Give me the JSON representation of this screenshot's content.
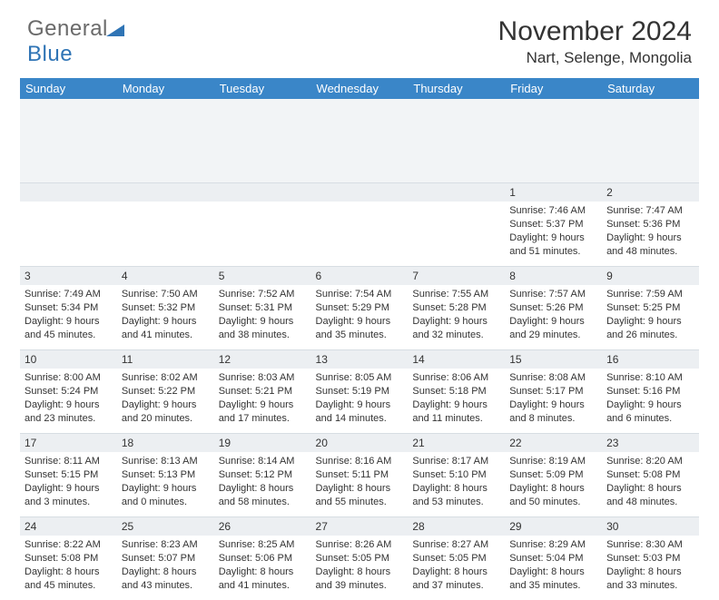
{
  "logo": {
    "word1": "General",
    "word2": "Blue"
  },
  "header": {
    "title": "November 2024",
    "subtitle": "Nart, Selenge, Mongolia"
  },
  "colors": {
    "header_bg": "#3a86c8",
    "header_text": "#ffffff",
    "daynum_bg": "#eceff2",
    "text": "#333333",
    "logo_gray": "#6a6a6a",
    "logo_blue": "#2f74b5"
  },
  "style": {
    "title_fontsize": 30,
    "subtitle_fontsize": 17,
    "dayheader_fontsize": 13,
    "daynum_fontsize": 12,
    "body_fontsize": 11
  },
  "day_headers": [
    "Sunday",
    "Monday",
    "Tuesday",
    "Wednesday",
    "Thursday",
    "Friday",
    "Saturday"
  ],
  "weeks": [
    [
      null,
      null,
      null,
      null,
      null,
      {
        "n": "1",
        "sunrise": "7:46 AM",
        "sunset": "5:37 PM",
        "daylight": "9 hours and 51 minutes."
      },
      {
        "n": "2",
        "sunrise": "7:47 AM",
        "sunset": "5:36 PM",
        "daylight": "9 hours and 48 minutes."
      }
    ],
    [
      {
        "n": "3",
        "sunrise": "7:49 AM",
        "sunset": "5:34 PM",
        "daylight": "9 hours and 45 minutes."
      },
      {
        "n": "4",
        "sunrise": "7:50 AM",
        "sunset": "5:32 PM",
        "daylight": "9 hours and 41 minutes."
      },
      {
        "n": "5",
        "sunrise": "7:52 AM",
        "sunset": "5:31 PM",
        "daylight": "9 hours and 38 minutes."
      },
      {
        "n": "6",
        "sunrise": "7:54 AM",
        "sunset": "5:29 PM",
        "daylight": "9 hours and 35 minutes."
      },
      {
        "n": "7",
        "sunrise": "7:55 AM",
        "sunset": "5:28 PM",
        "daylight": "9 hours and 32 minutes."
      },
      {
        "n": "8",
        "sunrise": "7:57 AM",
        "sunset": "5:26 PM",
        "daylight": "9 hours and 29 minutes."
      },
      {
        "n": "9",
        "sunrise": "7:59 AM",
        "sunset": "5:25 PM",
        "daylight": "9 hours and 26 minutes."
      }
    ],
    [
      {
        "n": "10",
        "sunrise": "8:00 AM",
        "sunset": "5:24 PM",
        "daylight": "9 hours and 23 minutes."
      },
      {
        "n": "11",
        "sunrise": "8:02 AM",
        "sunset": "5:22 PM",
        "daylight": "9 hours and 20 minutes."
      },
      {
        "n": "12",
        "sunrise": "8:03 AM",
        "sunset": "5:21 PM",
        "daylight": "9 hours and 17 minutes."
      },
      {
        "n": "13",
        "sunrise": "8:05 AM",
        "sunset": "5:19 PM",
        "daylight": "9 hours and 14 minutes."
      },
      {
        "n": "14",
        "sunrise": "8:06 AM",
        "sunset": "5:18 PM",
        "daylight": "9 hours and 11 minutes."
      },
      {
        "n": "15",
        "sunrise": "8:08 AM",
        "sunset": "5:17 PM",
        "daylight": "9 hours and 8 minutes."
      },
      {
        "n": "16",
        "sunrise": "8:10 AM",
        "sunset": "5:16 PM",
        "daylight": "9 hours and 6 minutes."
      }
    ],
    [
      {
        "n": "17",
        "sunrise": "8:11 AM",
        "sunset": "5:15 PM",
        "daylight": "9 hours and 3 minutes."
      },
      {
        "n": "18",
        "sunrise": "8:13 AM",
        "sunset": "5:13 PM",
        "daylight": "9 hours and 0 minutes."
      },
      {
        "n": "19",
        "sunrise": "8:14 AM",
        "sunset": "5:12 PM",
        "daylight": "8 hours and 58 minutes."
      },
      {
        "n": "20",
        "sunrise": "8:16 AM",
        "sunset": "5:11 PM",
        "daylight": "8 hours and 55 minutes."
      },
      {
        "n": "21",
        "sunrise": "8:17 AM",
        "sunset": "5:10 PM",
        "daylight": "8 hours and 53 minutes."
      },
      {
        "n": "22",
        "sunrise": "8:19 AM",
        "sunset": "5:09 PM",
        "daylight": "8 hours and 50 minutes."
      },
      {
        "n": "23",
        "sunrise": "8:20 AM",
        "sunset": "5:08 PM",
        "daylight": "8 hours and 48 minutes."
      }
    ],
    [
      {
        "n": "24",
        "sunrise": "8:22 AM",
        "sunset": "5:08 PM",
        "daylight": "8 hours and 45 minutes."
      },
      {
        "n": "25",
        "sunrise": "8:23 AM",
        "sunset": "5:07 PM",
        "daylight": "8 hours and 43 minutes."
      },
      {
        "n": "26",
        "sunrise": "8:25 AM",
        "sunset": "5:06 PM",
        "daylight": "8 hours and 41 minutes."
      },
      {
        "n": "27",
        "sunrise": "8:26 AM",
        "sunset": "5:05 PM",
        "daylight": "8 hours and 39 minutes."
      },
      {
        "n": "28",
        "sunrise": "8:27 AM",
        "sunset": "5:05 PM",
        "daylight": "8 hours and 37 minutes."
      },
      {
        "n": "29",
        "sunrise": "8:29 AM",
        "sunset": "5:04 PM",
        "daylight": "8 hours and 35 minutes."
      },
      {
        "n": "30",
        "sunrise": "8:30 AM",
        "sunset": "5:03 PM",
        "daylight": "8 hours and 33 minutes."
      }
    ]
  ],
  "labels": {
    "sunrise": "Sunrise: ",
    "sunset": "Sunset: ",
    "daylight": "Daylight: "
  }
}
